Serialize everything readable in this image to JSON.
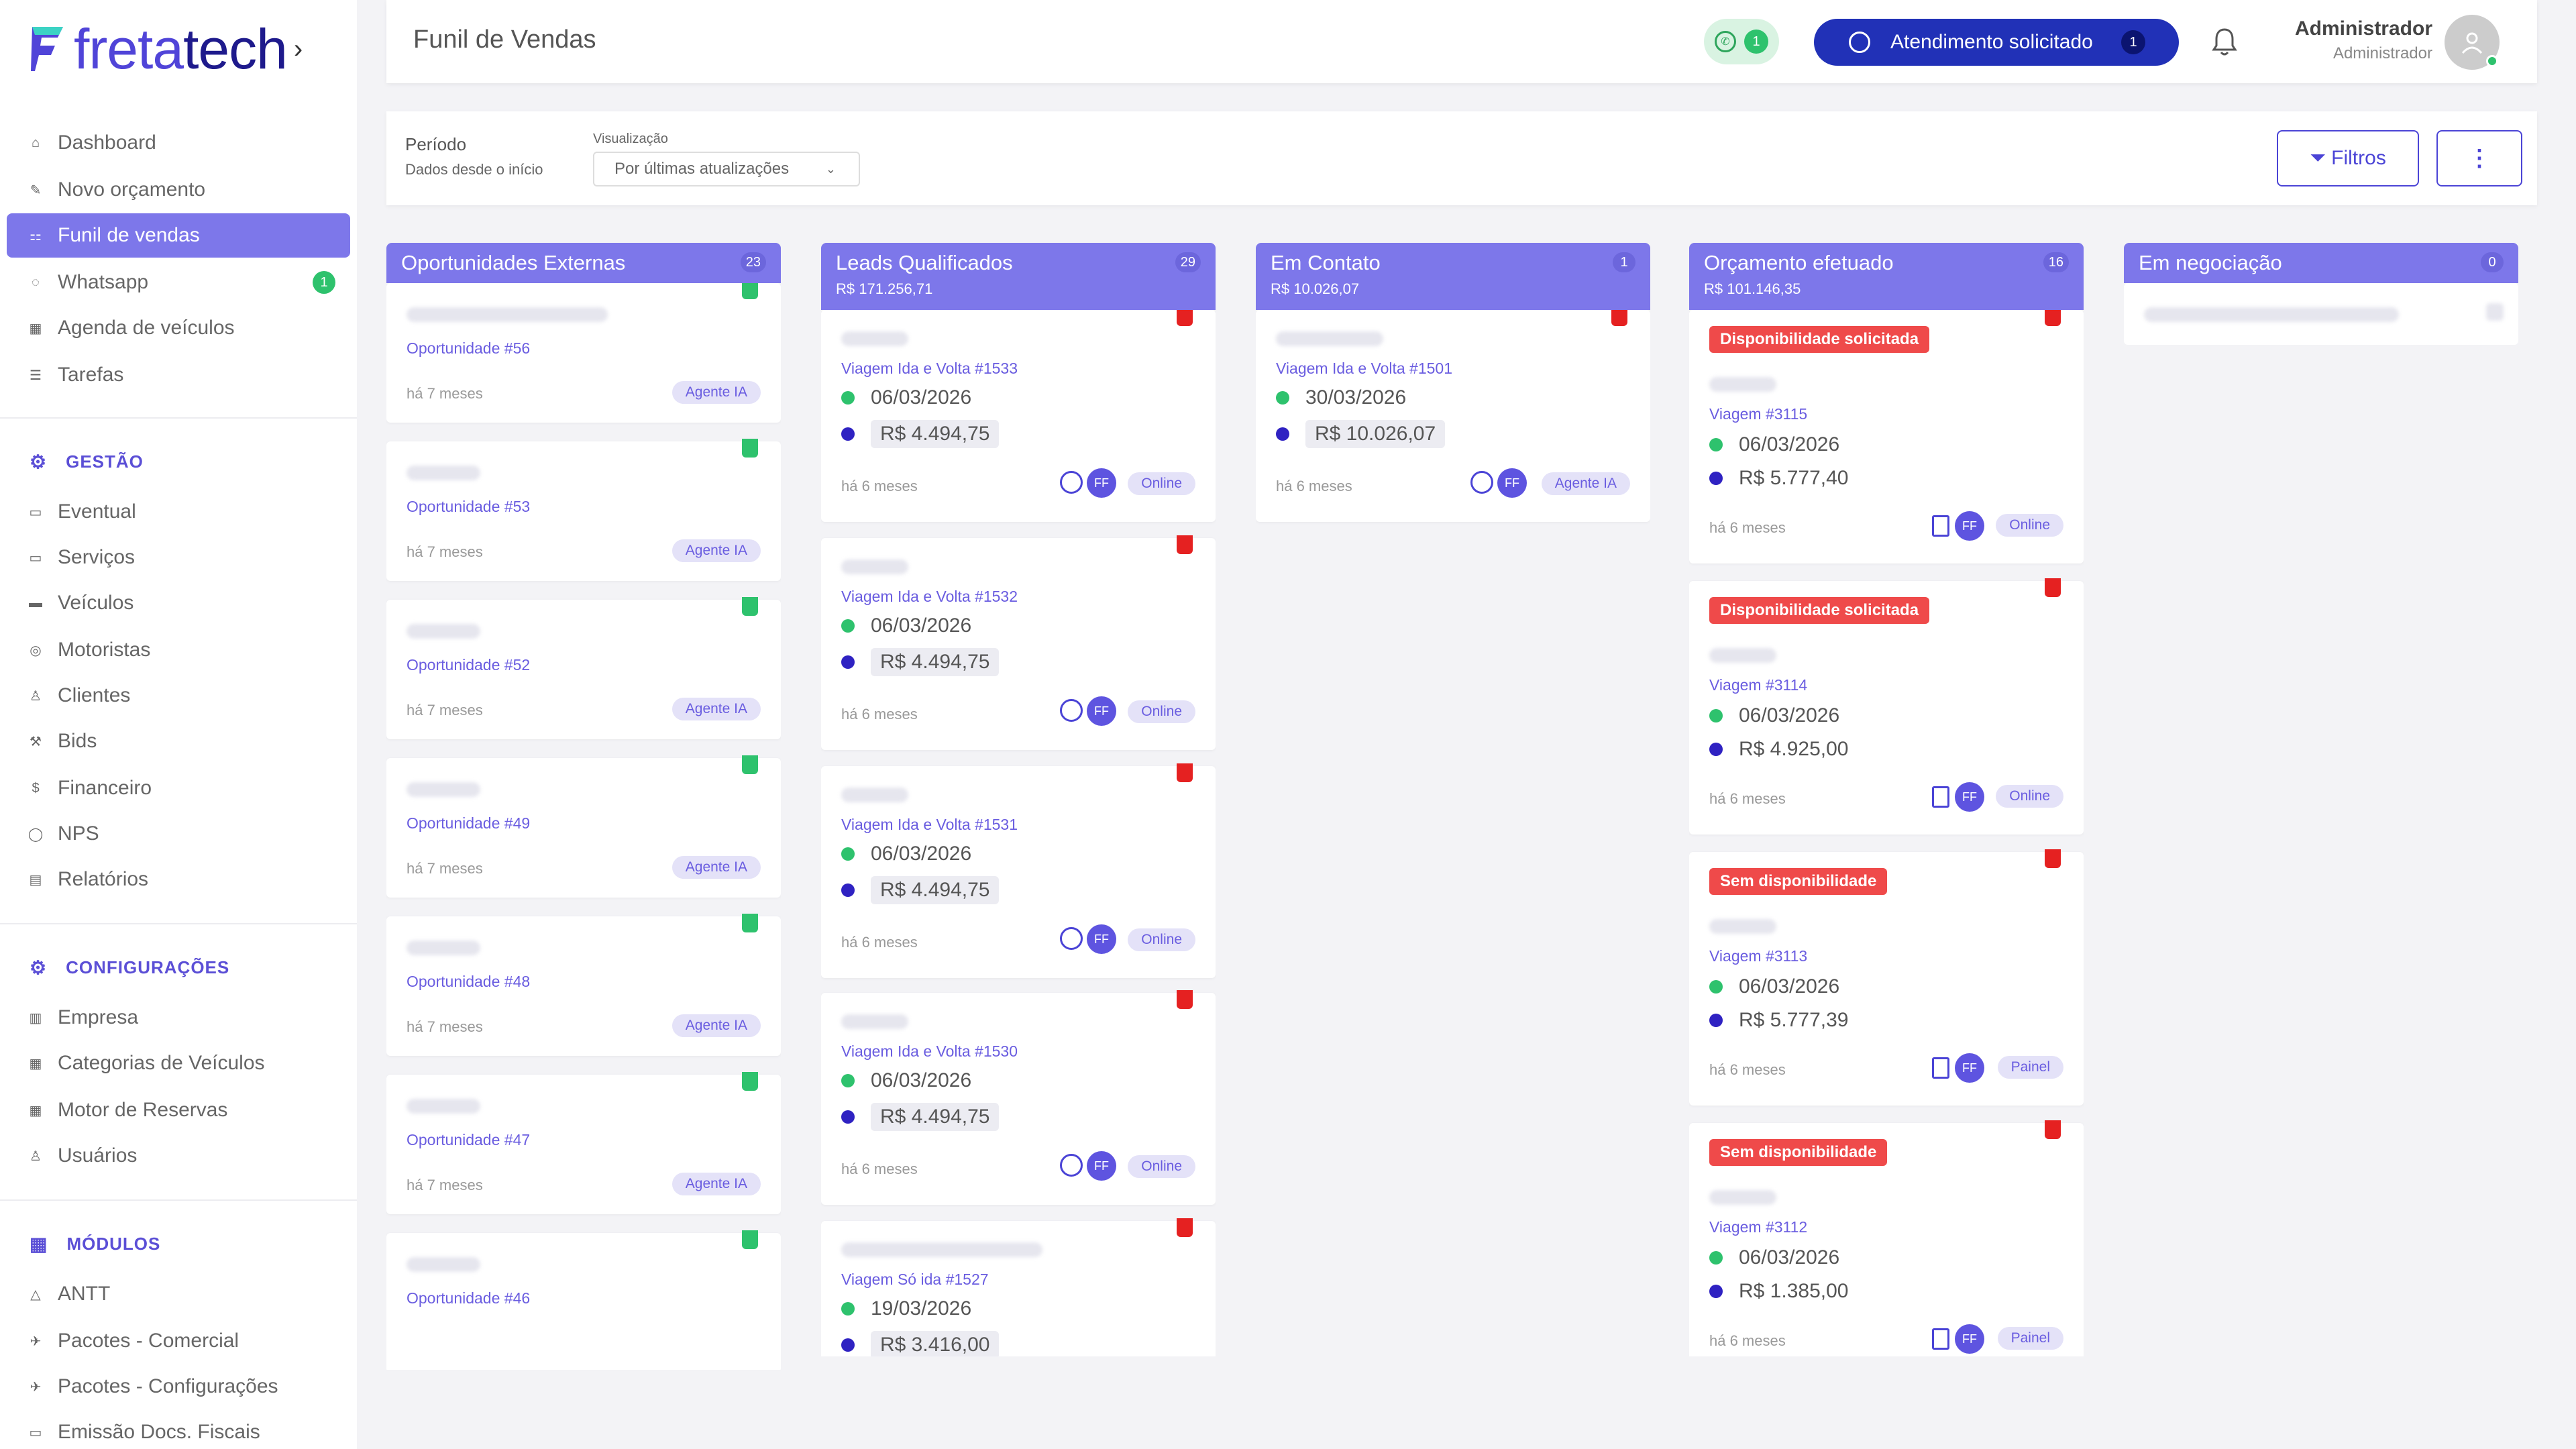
{
  "brand": {
    "prefix": "freta",
    "suffix": "tech",
    "chevron": "›"
  },
  "sidebar": {
    "items": [
      {
        "label": "Dashboard",
        "icon": "home-icon"
      },
      {
        "label": "Novo orçamento",
        "icon": "edit-icon"
      },
      {
        "label": "Funil de vendas",
        "icon": "funnel-icon",
        "active": true
      },
      {
        "label": "Whatsapp",
        "icon": "whatsapp-icon",
        "badge": "1"
      },
      {
        "label": "Agenda de veículos",
        "icon": "calendar-icon"
      },
      {
        "label": "Tarefas",
        "icon": "list-icon"
      }
    ],
    "gestao_title": "GESTÃO",
    "gestao": [
      {
        "label": "Eventual"
      },
      {
        "label": "Serviços"
      },
      {
        "label": "Veículos"
      },
      {
        "label": "Motoristas"
      },
      {
        "label": "Clientes"
      },
      {
        "label": "Bids"
      },
      {
        "label": "Financeiro"
      },
      {
        "label": "NPS"
      },
      {
        "label": "Relatórios"
      }
    ],
    "config_title": "CONFIGURAÇÕES",
    "config": [
      {
        "label": "Empresa"
      },
      {
        "label": "Categorias de Veículos"
      },
      {
        "label": "Motor de Reservas"
      },
      {
        "label": "Usuários"
      }
    ],
    "modulos_title": "MÓDULOS",
    "modulos": [
      {
        "label": "ANTT"
      },
      {
        "label": "Pacotes - Comercial"
      },
      {
        "label": "Pacotes - Configurações"
      },
      {
        "label": "Emissão Docs. Fiscais"
      }
    ]
  },
  "header": {
    "title": "Funil de Vendas",
    "whatsapp_count": "1",
    "attendance_label": "Atendimento solicitado",
    "attendance_count": "1",
    "user_name": "Administrador",
    "user_role": "Administrador"
  },
  "filters": {
    "period_label": "Período",
    "period_value": "Dados desde o início",
    "view_label": "Visualização",
    "view_value": "Por últimas atualizações",
    "filters_button": "Filtros",
    "more_button": "⋮"
  },
  "columns": [
    {
      "title": "Oportunidades Externas",
      "count": "23",
      "sum": "",
      "cards": [
        {
          "link": "Oportunidade #56",
          "ago": "há 7 meses",
          "tag": "Agente IA"
        },
        {
          "link": "Oportunidade #53",
          "ago": "há 7 meses",
          "tag": "Agente IA"
        },
        {
          "link": "Oportunidade #52",
          "ago": "há 7 meses",
          "tag": "Agente IA"
        },
        {
          "link": "Oportunidade #49",
          "ago": "há 7 meses",
          "tag": "Agente IA"
        },
        {
          "link": "Oportunidade #48",
          "ago": "há 7 meses",
          "tag": "Agente IA"
        },
        {
          "link": "Oportunidade #47",
          "ago": "há 7 meses",
          "tag": "Agente IA"
        },
        {
          "link": "Oportunidade #46",
          "ago": "",
          "tag": ""
        }
      ]
    },
    {
      "title": "Leads Qualificados",
      "count": "29",
      "sum": "R$ 171.256,71",
      "cards": [
        {
          "link": "Viagem Ida e Volta #1533",
          "date": "06/03/2026",
          "price": "R$ 4.494,75",
          "ago": "há 6 meses",
          "tag": "Online"
        },
        {
          "link": "Viagem Ida e Volta #1532",
          "date": "06/03/2026",
          "price": "R$ 4.494,75",
          "ago": "há 6 meses",
          "tag": "Online"
        },
        {
          "link": "Viagem Ida e Volta #1531",
          "date": "06/03/2026",
          "price": "R$ 4.494,75",
          "ago": "há 6 meses",
          "tag": "Online"
        },
        {
          "link": "Viagem Ida e Volta #1530",
          "date": "06/03/2026",
          "price": "R$ 4.494,75",
          "ago": "há 6 meses",
          "tag": "Online"
        },
        {
          "link": "Viagem Só ida #1527",
          "date": "19/03/2026",
          "price": "R$ 3.416,00",
          "ago": "",
          "tag": ""
        }
      ]
    },
    {
      "title": "Em Contato",
      "count": "1",
      "sum": "R$ 10.026,07",
      "cards": [
        {
          "link": "Viagem Ida e Volta #1501",
          "date": "30/03/2026",
          "price": "R$ 10.026,07",
          "ago": "há 6 meses",
          "tag": "Agente IA"
        }
      ]
    },
    {
      "title": "Orçamento efetuado",
      "count": "16",
      "sum": "R$ 101.146,35",
      "cards": [
        {
          "status": "Disponibilidade solicitada",
          "link": "Viagem #3115",
          "date": "06/03/2026",
          "price": "R$ 5.777,40",
          "ago": "há 6 meses",
          "tag": "Online"
        },
        {
          "status": "Disponibilidade solicitada",
          "link": "Viagem #3114",
          "date": "06/03/2026",
          "price": "R$ 4.925,00",
          "ago": "há 6 meses",
          "tag": "Online"
        },
        {
          "status": "Sem disponibilidade",
          "link": "Viagem #3113",
          "date": "06/03/2026",
          "price": "R$ 5.777,39",
          "ago": "há 6 meses",
          "tag": "Painel"
        },
        {
          "status": "Sem disponibilidade",
          "link": "Viagem #3112",
          "date": "06/03/2026",
          "price": "R$ 1.385,00",
          "ago": "há 6 meses",
          "tag": "Painel"
        }
      ]
    },
    {
      "title": "Em negociação",
      "count": "0",
      "sum": "",
      "cards": []
    }
  ],
  "colors": {
    "accent": "#7d77ea",
    "brand": "#5044d8",
    "green": "#2ec26d",
    "red": "#ef4a4a",
    "dark_blue": "#2131b7"
  }
}
